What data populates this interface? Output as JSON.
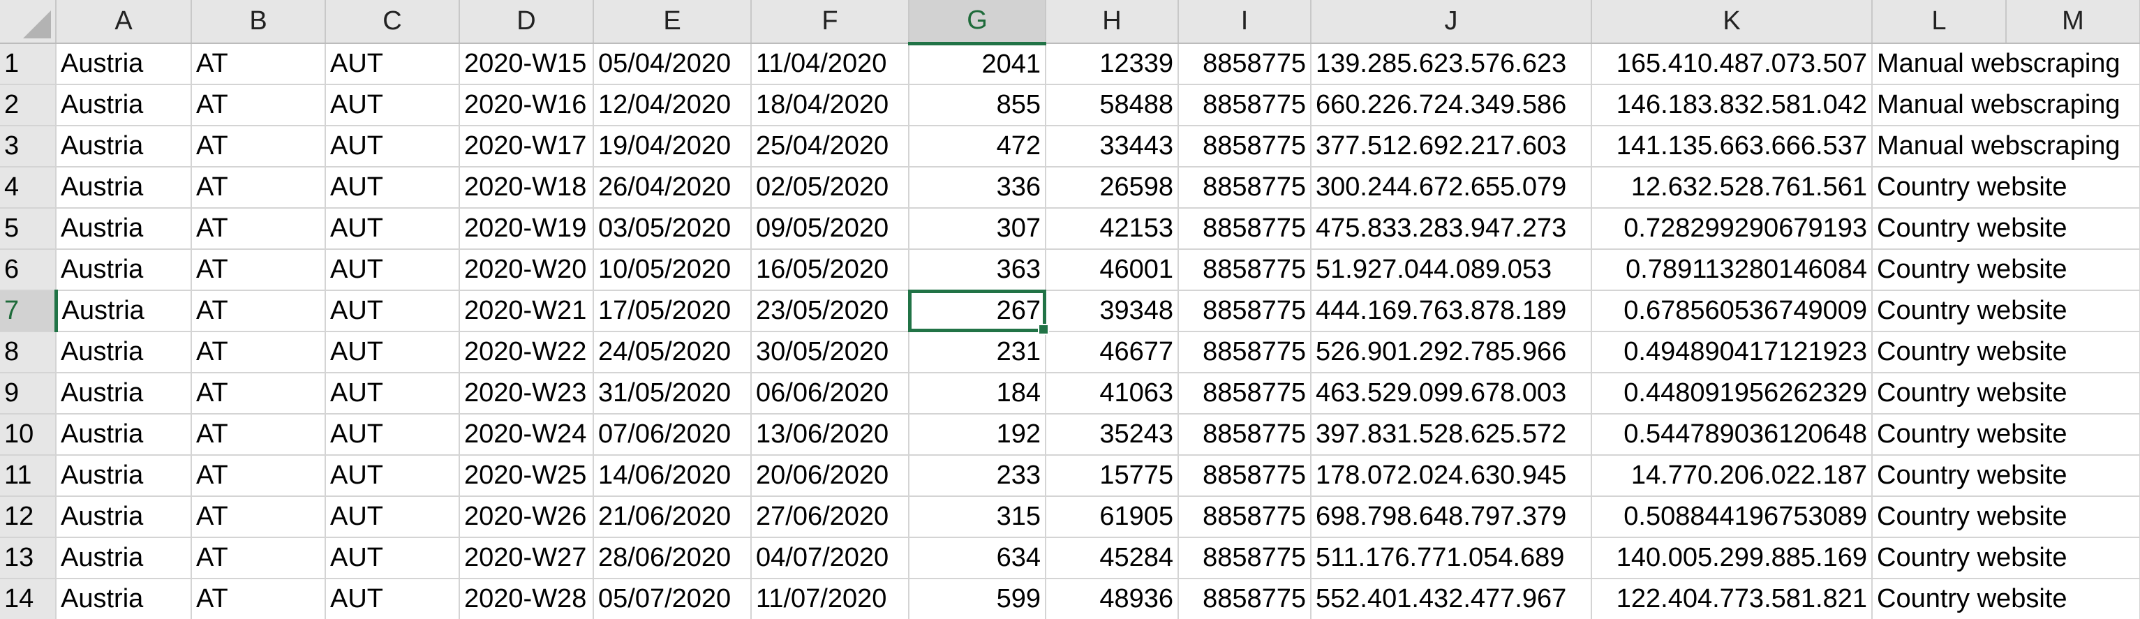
{
  "sheet": {
    "accent_color": "#217346",
    "columns": [
      "A",
      "B",
      "C",
      "D",
      "E",
      "F",
      "G",
      "H",
      "I",
      "J",
      "K",
      "L",
      "M"
    ],
    "selected_column": "G",
    "selected_row": 7,
    "active_cell": "G7",
    "rows": [
      {
        "num": "1",
        "cells": [
          "Austria",
          "AT",
          "AUT",
          "2020-W15",
          "05/04/2020",
          "11/04/2020",
          "2041",
          "12339",
          "8858775",
          "139.285.623.576.623",
          "165.410.487.073.507",
          "Manual webscraping"
        ]
      },
      {
        "num": "2",
        "cells": [
          "Austria",
          "AT",
          "AUT",
          "2020-W16",
          "12/04/2020",
          "18/04/2020",
          "855",
          "58488",
          "8858775",
          "660.226.724.349.586",
          "146.183.832.581.042",
          "Manual webscraping"
        ]
      },
      {
        "num": "3",
        "cells": [
          "Austria",
          "AT",
          "AUT",
          "2020-W17",
          "19/04/2020",
          "25/04/2020",
          "472",
          "33443",
          "8858775",
          "377.512.692.217.603",
          "141.135.663.666.537",
          "Manual webscraping"
        ]
      },
      {
        "num": "4",
        "cells": [
          "Austria",
          "AT",
          "AUT",
          "2020-W18",
          "26/04/2020",
          "02/05/2020",
          "336",
          "26598",
          "8858775",
          "300.244.672.655.079",
          "12.632.528.761.561",
          "Country website"
        ]
      },
      {
        "num": "5",
        "cells": [
          "Austria",
          "AT",
          "AUT",
          "2020-W19",
          "03/05/2020",
          "09/05/2020",
          "307",
          "42153",
          "8858775",
          "475.833.283.947.273",
          "0.728299290679193",
          "Country website"
        ]
      },
      {
        "num": "6",
        "cells": [
          "Austria",
          "AT",
          "AUT",
          "2020-W20",
          "10/05/2020",
          "16/05/2020",
          "363",
          "46001",
          "8858775",
          "51.927.044.089.053",
          "0.789113280146084",
          "Country website"
        ]
      },
      {
        "num": "7",
        "cells": [
          "Austria",
          "AT",
          "AUT",
          "2020-W21",
          "17/05/2020",
          "23/05/2020",
          "267",
          "39348",
          "8858775",
          "444.169.763.878.189",
          "0.678560536749009",
          "Country website"
        ]
      },
      {
        "num": "8",
        "cells": [
          "Austria",
          "AT",
          "AUT",
          "2020-W22",
          "24/05/2020",
          "30/05/2020",
          "231",
          "46677",
          "8858775",
          "526.901.292.785.966",
          "0.494890417121923",
          "Country website"
        ]
      },
      {
        "num": "9",
        "cells": [
          "Austria",
          "AT",
          "AUT",
          "2020-W23",
          "31/05/2020",
          "06/06/2020",
          "184",
          "41063",
          "8858775",
          "463.529.099.678.003",
          "0.448091956262329",
          "Country website"
        ]
      },
      {
        "num": "10",
        "cells": [
          "Austria",
          "AT",
          "AUT",
          "2020-W24",
          "07/06/2020",
          "13/06/2020",
          "192",
          "35243",
          "8858775",
          "397.831.528.625.572",
          "0.544789036120648",
          "Country website"
        ]
      },
      {
        "num": "11",
        "cells": [
          "Austria",
          "AT",
          "AUT",
          "2020-W25",
          "14/06/2020",
          "20/06/2020",
          "233",
          "15775",
          "8858775",
          "178.072.024.630.945",
          "14.770.206.022.187",
          "Country website"
        ]
      },
      {
        "num": "12",
        "cells": [
          "Austria",
          "AT",
          "AUT",
          "2020-W26",
          "21/06/2020",
          "27/06/2020",
          "315",
          "61905",
          "8858775",
          "698.798.648.797.379",
          "0.508844196753089",
          "Country website"
        ]
      },
      {
        "num": "13",
        "cells": [
          "Austria",
          "AT",
          "AUT",
          "2020-W27",
          "28/06/2020",
          "04/07/2020",
          "634",
          "45284",
          "8858775",
          "511.176.771.054.689",
          "140.005.299.885.169",
          "Country website"
        ]
      },
      {
        "num": "14",
        "cells": [
          "Austria",
          "AT",
          "AUT",
          "2020-W28",
          "05/07/2020",
          "11/07/2020",
          "599",
          "48936",
          "8858775",
          "552.401.432.477.967",
          "122.404.773.581.821",
          "Country website"
        ]
      }
    ]
  }
}
